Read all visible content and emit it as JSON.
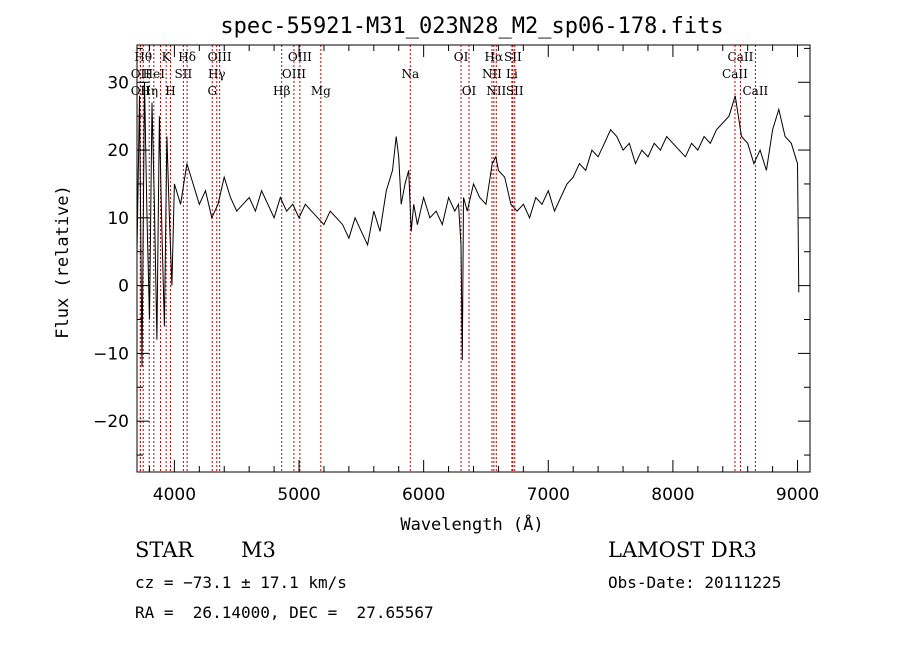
{
  "chart_data": {
    "type": "line",
    "title": "spec-55921-M31_023N28_M2_sp06-178.fits",
    "xlabel": "Wavelength (Å)",
    "ylabel": "Flux (relative)",
    "xlim": [
      3700,
      9100
    ],
    "ylim": [
      -27.5,
      35.5
    ],
    "xticks": [
      4000,
      5000,
      6000,
      7000,
      8000,
      9000
    ],
    "yticks": [
      -20,
      -10,
      0,
      10,
      20,
      30
    ],
    "grid": false,
    "line_color": "#000000",
    "marker_color": "#c00000",
    "series": [
      {
        "x": [
          3700,
          3720,
          3740,
          3760,
          3780,
          3800,
          3820,
          3840,
          3860,
          3880,
          3900,
          3920,
          3940,
          3960,
          3980,
          4000,
          4050,
          4100,
          4150,
          4200,
          4250,
          4300,
          4350,
          4400,
          4450,
          4500,
          4550,
          4600,
          4650,
          4700,
          4750,
          4800,
          4850,
          4900,
          4950,
          5000,
          5050,
          5100,
          5150,
          5200,
          5250,
          5300,
          5350,
          5400,
          5450,
          5500,
          5550,
          5600,
          5650,
          5700,
          5750,
          5780,
          5800,
          5820,
          5850,
          5880,
          5900,
          5920,
          5950,
          6000,
          6050,
          6100,
          6150,
          6200,
          6250,
          6280,
          6300,
          6310,
          6320,
          6350,
          6400,
          6450,
          6500,
          6550,
          6580,
          6600,
          6650,
          6700,
          6750,
          6800,
          6850,
          6900,
          6950,
          7000,
          7050,
          7100,
          7150,
          7200,
          7250,
          7300,
          7350,
          7400,
          7450,
          7500,
          7550,
          7600,
          7650,
          7700,
          7750,
          7800,
          7850,
          7900,
          7950,
          8000,
          8050,
          8100,
          8150,
          8200,
          8250,
          8300,
          8350,
          8400,
          8450,
          8500,
          8550,
          8600,
          8650,
          8700,
          8750,
          8800,
          8850,
          8900,
          8950,
          9000,
          9010
        ],
        "y": [
          5,
          28,
          -12,
          30,
          10,
          -5,
          27,
          12,
          -8,
          25,
          8,
          -6,
          22,
          10,
          0,
          15,
          12,
          18,
          15,
          12,
          14,
          10,
          12,
          16,
          13,
          11,
          12,
          13,
          11,
          14,
          12,
          10,
          13,
          11,
          12,
          10,
          12,
          11,
          10,
          9,
          11,
          10,
          9,
          7,
          10,
          8,
          6,
          11,
          8,
          14,
          17,
          22,
          19,
          12,
          15,
          17,
          8,
          12,
          9,
          13,
          10,
          11,
          9,
          13,
          11,
          12,
          6,
          -11,
          13,
          11,
          15,
          13,
          12,
          18,
          19,
          17,
          16,
          12,
          11,
          12,
          10,
          13,
          12,
          14,
          11,
          13,
          15,
          16,
          18,
          17,
          20,
          19,
          21,
          23,
          22,
          20,
          21,
          18,
          20,
          19,
          21,
          20,
          22,
          21,
          20,
          19,
          21,
          20,
          22,
          21,
          23,
          24,
          25,
          28,
          22,
          21,
          18,
          20,
          17,
          23,
          26,
          22,
          21,
          18,
          -1
        ]
      }
    ],
    "lines": [
      {
        "x": 3750,
        "label": "Hθ",
        "row": 0
      },
      {
        "x": 3727,
        "label": "OII",
        "row": 1
      },
      {
        "x": 3727,
        "label": "OII",
        "row": 2
      },
      {
        "x": 3798,
        "label": "Hη",
        "row": 2
      },
      {
        "x": 3835,
        "label": "HeI",
        "row": 1
      },
      {
        "x": 3889,
        "label": "",
        "row": 0
      },
      {
        "x": 3934,
        "label": "K",
        "row": 0
      },
      {
        "x": 3969,
        "label": "H",
        "row": 2
      },
      {
        "x": 4072,
        "label": "SII",
        "row": 1
      },
      {
        "x": 4102,
        "label": "Hδ",
        "row": 0
      },
      {
        "x": 4304,
        "label": "G",
        "row": 2
      },
      {
        "x": 4340,
        "label": "Hγ",
        "row": 1
      },
      {
        "x": 4363,
        "label": "OIII",
        "row": 0
      },
      {
        "x": 4861,
        "label": "Hβ",
        "row": 2
      },
      {
        "x": 4959,
        "label": "OIII",
        "row": 1
      },
      {
        "x": 5007,
        "label": "OIII",
        "row": 0
      },
      {
        "x": 5175,
        "label": "Mg",
        "row": 2
      },
      {
        "x": 5893,
        "label": "Na",
        "row": 1
      },
      {
        "x": 6300,
        "label": "OI",
        "row": 0
      },
      {
        "x": 6364,
        "label": "OI",
        "row": 2
      },
      {
        "x": 6548,
        "label": "NII",
        "row": 1
      },
      {
        "x": 6563,
        "label": "Hα",
        "row": 0
      },
      {
        "x": 6583,
        "label": "NII",
        "row": 2
      },
      {
        "x": 6708,
        "label": "Li",
        "row": 1
      },
      {
        "x": 6716,
        "label": "SII",
        "row": 0
      },
      {
        "x": 6731,
        "label": "SII",
        "row": 2
      },
      {
        "x": 8498,
        "label": "CaII",
        "row": 1
      },
      {
        "x": 8542,
        "label": "CaII",
        "row": 0
      },
      {
        "x": 8662,
        "label": "CaII",
        "row": 2
      }
    ]
  },
  "info": {
    "class": "STAR",
    "subclass": "M3",
    "survey": "LAMOST DR3",
    "cz": "cz = −73.1 ± 17.1 km/s",
    "obs_date": "Obs-Date: 20111225",
    "radec": "RA =  26.14000, DEC =  27.65567"
  }
}
